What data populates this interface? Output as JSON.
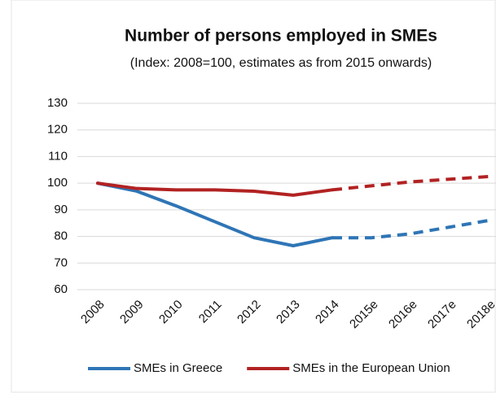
{
  "chart_data": {
    "type": "line",
    "title": "Number of persons employed in SMEs",
    "subtitle": "(Index: 2008=100, estimates as from 2015 onwards)",
    "categories": [
      "2008",
      "2009",
      "2010",
      "2011",
      "2012",
      "2013",
      "2014",
      "2015e",
      "2016e",
      "2017e",
      "2018e"
    ],
    "series": [
      {
        "name": "SMEs in Greece",
        "color": "#2e75b6",
        "values": [
          100,
          97,
          91.5,
          85.5,
          79.5,
          76.5,
          79.5,
          79.5,
          81,
          83.5,
          86
        ]
      },
      {
        "name": "SMEs in the European Union",
        "color": "#b22222",
        "values": [
          100,
          98,
          97.5,
          97.5,
          97,
          95.5,
          97.5,
          99,
          100.5,
          101.5,
          102.5
        ]
      }
    ],
    "dashed_from_category": "2014",
    "ylim": [
      60,
      130
    ],
    "yticks": [
      60,
      70,
      80,
      90,
      100,
      110,
      120,
      130
    ],
    "grid": true,
    "legend": "bottom"
  }
}
